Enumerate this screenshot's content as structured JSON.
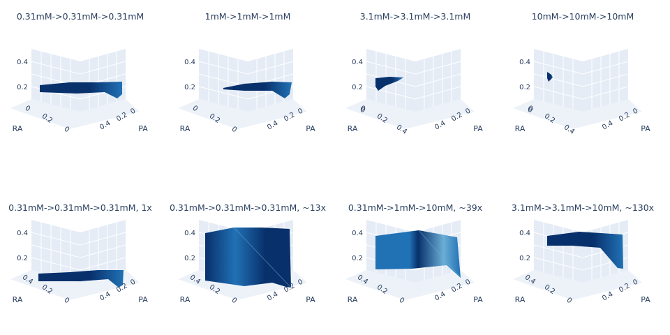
{
  "chart_data": [
    {
      "type": "surface3d",
      "title": "0.31mM->0.31mM->0.31mM",
      "axes": {
        "x": "RA",
        "y": "PA",
        "z": ""
      },
      "ticks": {
        "z": [
          "0.2",
          "0.4"
        ],
        "ra": [
          "0",
          "0.2",
          "0"
        ],
        "pa": [
          "0",
          "0.2",
          "0.4"
        ]
      },
      "z_range": [
        0.1,
        0.45
      ],
      "colorscale": [
        "#08306b",
        "#2171b5",
        "#6baed6"
      ]
    },
    {
      "type": "surface3d",
      "title": "1mM->1mM->1mM",
      "axes": {
        "x": "RA",
        "y": "PA",
        "z": ""
      },
      "ticks": {
        "z": [
          "0.2",
          "0.4"
        ],
        "ra": [
          "0",
          "0.2",
          "0"
        ],
        "pa": [
          "0",
          "0.2",
          "0.4"
        ]
      },
      "z_range": [
        0.1,
        0.45
      ],
      "colorscale": [
        "#08306b",
        "#2171b5",
        "#6baed6"
      ]
    },
    {
      "type": "surface3d",
      "title": "3.1mM->3.1mM->3.1mM",
      "axes": {
        "x": "RA",
        "y": "PA",
        "z": ""
      },
      "ticks": {
        "z": [
          "0.2",
          "0.4"
        ],
        "ra": [
          "0",
          "0.2",
          "0.4"
        ],
        "pa": [
          "0",
          "0.2",
          "0.4"
        ],
        "extra": "0"
      },
      "z_range": [
        0.1,
        0.45
      ],
      "colorscale": [
        "#08306b",
        "#2171b5",
        "#6baed6"
      ]
    },
    {
      "type": "surface3d",
      "title": "10mM->10mM->10mM",
      "axes": {
        "x": "RA",
        "y": "PA",
        "z": ""
      },
      "ticks": {
        "z": [
          "0.2",
          "0.4"
        ],
        "ra": [
          "0",
          "0.2",
          "0.4"
        ],
        "pa": [
          "0",
          "0.2",
          "0.4"
        ],
        "extra": "0"
      },
      "z_range": [
        0.1,
        0.45
      ],
      "colorscale": [
        "#08306b",
        "#2171b5",
        "#6baed6"
      ]
    },
    {
      "type": "surface3d",
      "title": "0.31mM->0.31mM->0.31mM, 1x",
      "axes": {
        "x": "RA",
        "y": "PA",
        "z": ""
      },
      "ticks": {
        "z": [
          "0.2",
          "0.4"
        ],
        "ra": [
          "0.4",
          "0.2",
          "0"
        ],
        "pa": [
          "0",
          "0.2",
          "0.4"
        ]
      },
      "z_range": [
        0.1,
        0.45
      ],
      "colorscale": [
        "#08306b",
        "#2171b5",
        "#6baed6"
      ]
    },
    {
      "type": "surface3d",
      "title": "0.31mM->0.31mM->0.31mM, ~13x",
      "axes": {
        "x": "RA",
        "y": "PA",
        "z": ""
      },
      "ticks": {
        "z": [
          "0.2",
          "0.4"
        ],
        "ra": [
          "0.4",
          "0.2",
          "0"
        ],
        "pa": [
          "0",
          "0.2",
          "0.4"
        ]
      },
      "z_range": [
        0.1,
        0.45
      ],
      "colorscale": [
        "#08306b",
        "#2171b5",
        "#6baed6"
      ]
    },
    {
      "type": "surface3d",
      "title": "0.31mM->1mM->10mM, ~39x",
      "axes": {
        "x": "RA",
        "y": "PA",
        "z": ""
      },
      "ticks": {
        "z": [
          "0.2",
          "0.4"
        ],
        "ra": [
          "0.4",
          "0.2",
          "0"
        ],
        "pa": [
          "0",
          "0.2",
          "0.4"
        ]
      },
      "z_range": [
        0.1,
        0.45
      ],
      "colorscale": [
        "#08306b",
        "#2171b5",
        "#6baed6"
      ]
    },
    {
      "type": "surface3d",
      "title": "3.1mM->3.1mM->10mM, ~130x",
      "axes": {
        "x": "RA",
        "y": "PA",
        "z": ""
      },
      "ticks": {
        "z": [
          "0.2",
          "0.4"
        ],
        "ra": [
          "0.4",
          "0.2",
          "0"
        ],
        "pa": [
          "0",
          "0.2",
          "0.4"
        ]
      },
      "z_range": [
        0.1,
        0.45
      ],
      "colorscale": [
        "#08306b",
        "#2171b5",
        "#6baed6"
      ]
    }
  ],
  "colors": {
    "scene_bg": "#e5ecf6",
    "grid": "#ffffff",
    "text": "#2a3f5f",
    "surface_dark": "#08306b",
    "surface_mid": "#2171b5",
    "surface_light": "#6baed6"
  }
}
